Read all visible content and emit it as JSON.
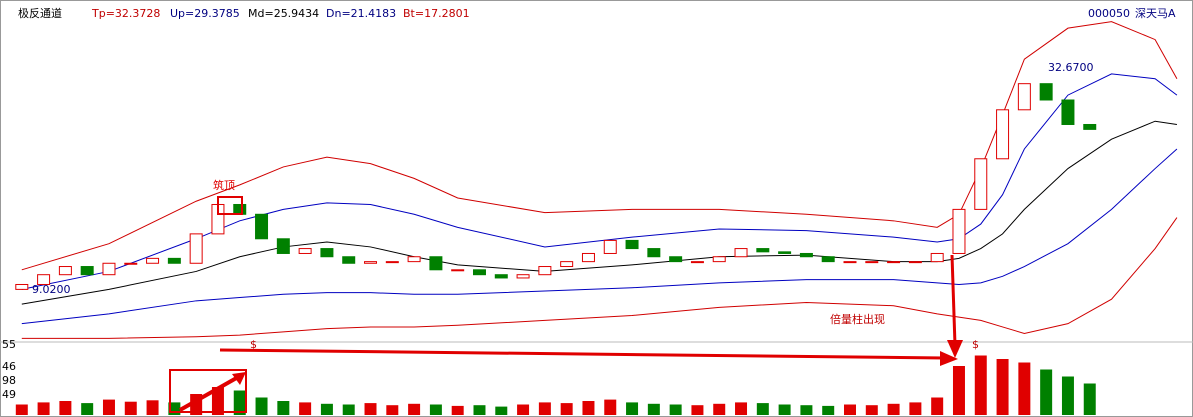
{
  "header": {
    "indicator": "极反通道",
    "params": [
      "Tp=32.3728",
      "Up=29.3785",
      "Md=25.9434",
      "Dn=21.4183",
      "Bt=17.2801"
    ],
    "code": "000050",
    "stock": "深天马A"
  },
  "volume_axis_labels": [
    "55",
    "46",
    "98",
    "49"
  ],
  "chart_data": {
    "type": "candlestick",
    "xlim": [
      -1,
      53.6
    ],
    "ylim": [
      15.9,
      35.5
    ],
    "open": [
      19.0,
      19.3,
      19.9,
      20.4,
      19.9,
      20.6,
      20.6,
      20.9,
      20.6,
      22.4,
      24.2,
      23.6,
      22.1,
      21.2,
      21.5,
      21.0,
      20.6,
      20.7,
      20.7,
      21.0,
      20.2,
      20.2,
      19.9,
      19.7,
      19.9,
      20.4,
      20.7,
      21.2,
      22.0,
      21.5,
      21.0,
      20.7,
      20.7,
      21.0,
      21.5,
      21.3,
      21.2,
      21.0,
      20.7,
      20.7,
      20.7,
      20.7,
      20.7,
      21.2,
      23.9,
      27.0,
      30.0,
      31.6,
      30.6,
      29.1
    ],
    "close": [
      19.3,
      19.9,
      20.4,
      19.9,
      20.6,
      20.6,
      20.9,
      20.6,
      22.4,
      24.2,
      23.6,
      22.1,
      21.2,
      21.5,
      21.0,
      20.6,
      20.7,
      20.7,
      21.0,
      20.2,
      20.2,
      19.9,
      19.7,
      19.9,
      20.4,
      20.7,
      21.2,
      22.0,
      21.5,
      21.0,
      20.7,
      20.7,
      21.0,
      21.5,
      21.3,
      21.2,
      21.0,
      20.7,
      20.7,
      20.7,
      20.7,
      20.7,
      21.2,
      23.9,
      27.0,
      30.0,
      31.6,
      30.6,
      29.1,
      28.8
    ],
    "up_color": "#e00000",
    "down_color": "#008000",
    "volume": [
      15,
      18,
      20,
      17,
      22,
      19,
      21,
      18,
      30,
      40,
      35,
      25,
      20,
      18,
      16,
      15,
      17,
      14,
      16,
      15,
      13,
      14,
      12,
      15,
      18,
      17,
      20,
      22,
      18,
      16,
      15,
      14,
      16,
      18,
      17,
      15,
      14,
      13,
      15,
      14,
      16,
      18,
      25,
      70,
      85,
      80,
      75,
      65,
      55,
      45
    ],
    "volume_ylim": [
      0,
      100
    ],
    "bands": {
      "x": [
        0,
        4,
        8,
        10,
        12,
        14,
        16,
        18,
        20,
        24,
        28,
        32,
        36,
        40,
        42,
        43,
        44,
        45,
        46,
        48,
        50,
        52,
        53
      ],
      "series": [
        {
          "color": "#d00000",
          "values": [
            20.2,
            21.8,
            24.4,
            25.4,
            26.5,
            27.1,
            26.7,
            25.8,
            24.6,
            23.7,
            23.9,
            23.9,
            23.6,
            23.2,
            22.8,
            23.6,
            26.4,
            29.7,
            33.1,
            35.0,
            35.4,
            34.3,
            31.9
          ]
        },
        {
          "color": "#0000c0",
          "values": [
            19.0,
            20.1,
            22.1,
            23.2,
            23.9,
            24.3,
            24.2,
            23.6,
            22.8,
            21.6,
            22.2,
            22.7,
            22.6,
            22.2,
            21.9,
            22.1,
            23.0,
            24.8,
            27.6,
            30.9,
            32.2,
            31.9,
            30.9
          ]
        },
        {
          "color": "#000000",
          "values": [
            18.1,
            19.0,
            20.1,
            21.0,
            21.6,
            21.9,
            21.6,
            21.0,
            20.5,
            20.1,
            20.5,
            21.0,
            21.1,
            20.7,
            20.7,
            20.9,
            21.5,
            22.4,
            23.9,
            26.4,
            28.2,
            29.3,
            29.1
          ]
        },
        {
          "color": "#0000c0",
          "values": [
            16.9,
            17.5,
            18.3,
            18.5,
            18.7,
            18.8,
            18.8,
            18.7,
            18.7,
            18.9,
            19.1,
            19.4,
            19.6,
            19.6,
            19.4,
            19.3,
            19.4,
            19.8,
            20.4,
            21.8,
            23.9,
            26.4,
            27.6
          ]
        },
        {
          "color": "#d00000",
          "values": [
            16.0,
            16.0,
            16.1,
            16.2,
            16.4,
            16.6,
            16.7,
            16.7,
            16.8,
            17.1,
            17.4,
            17.9,
            18.2,
            18.0,
            17.5,
            17.3,
            17.1,
            16.7,
            16.3,
            16.9,
            18.4,
            21.5,
            23.4
          ]
        }
      ]
    },
    "annotations": {
      "top": "筑顶",
      "volume": "倍量柱出现",
      "high": "32.6700",
      "low": "9.0200",
      "mark_1": "$",
      "mark_2": "$"
    }
  }
}
